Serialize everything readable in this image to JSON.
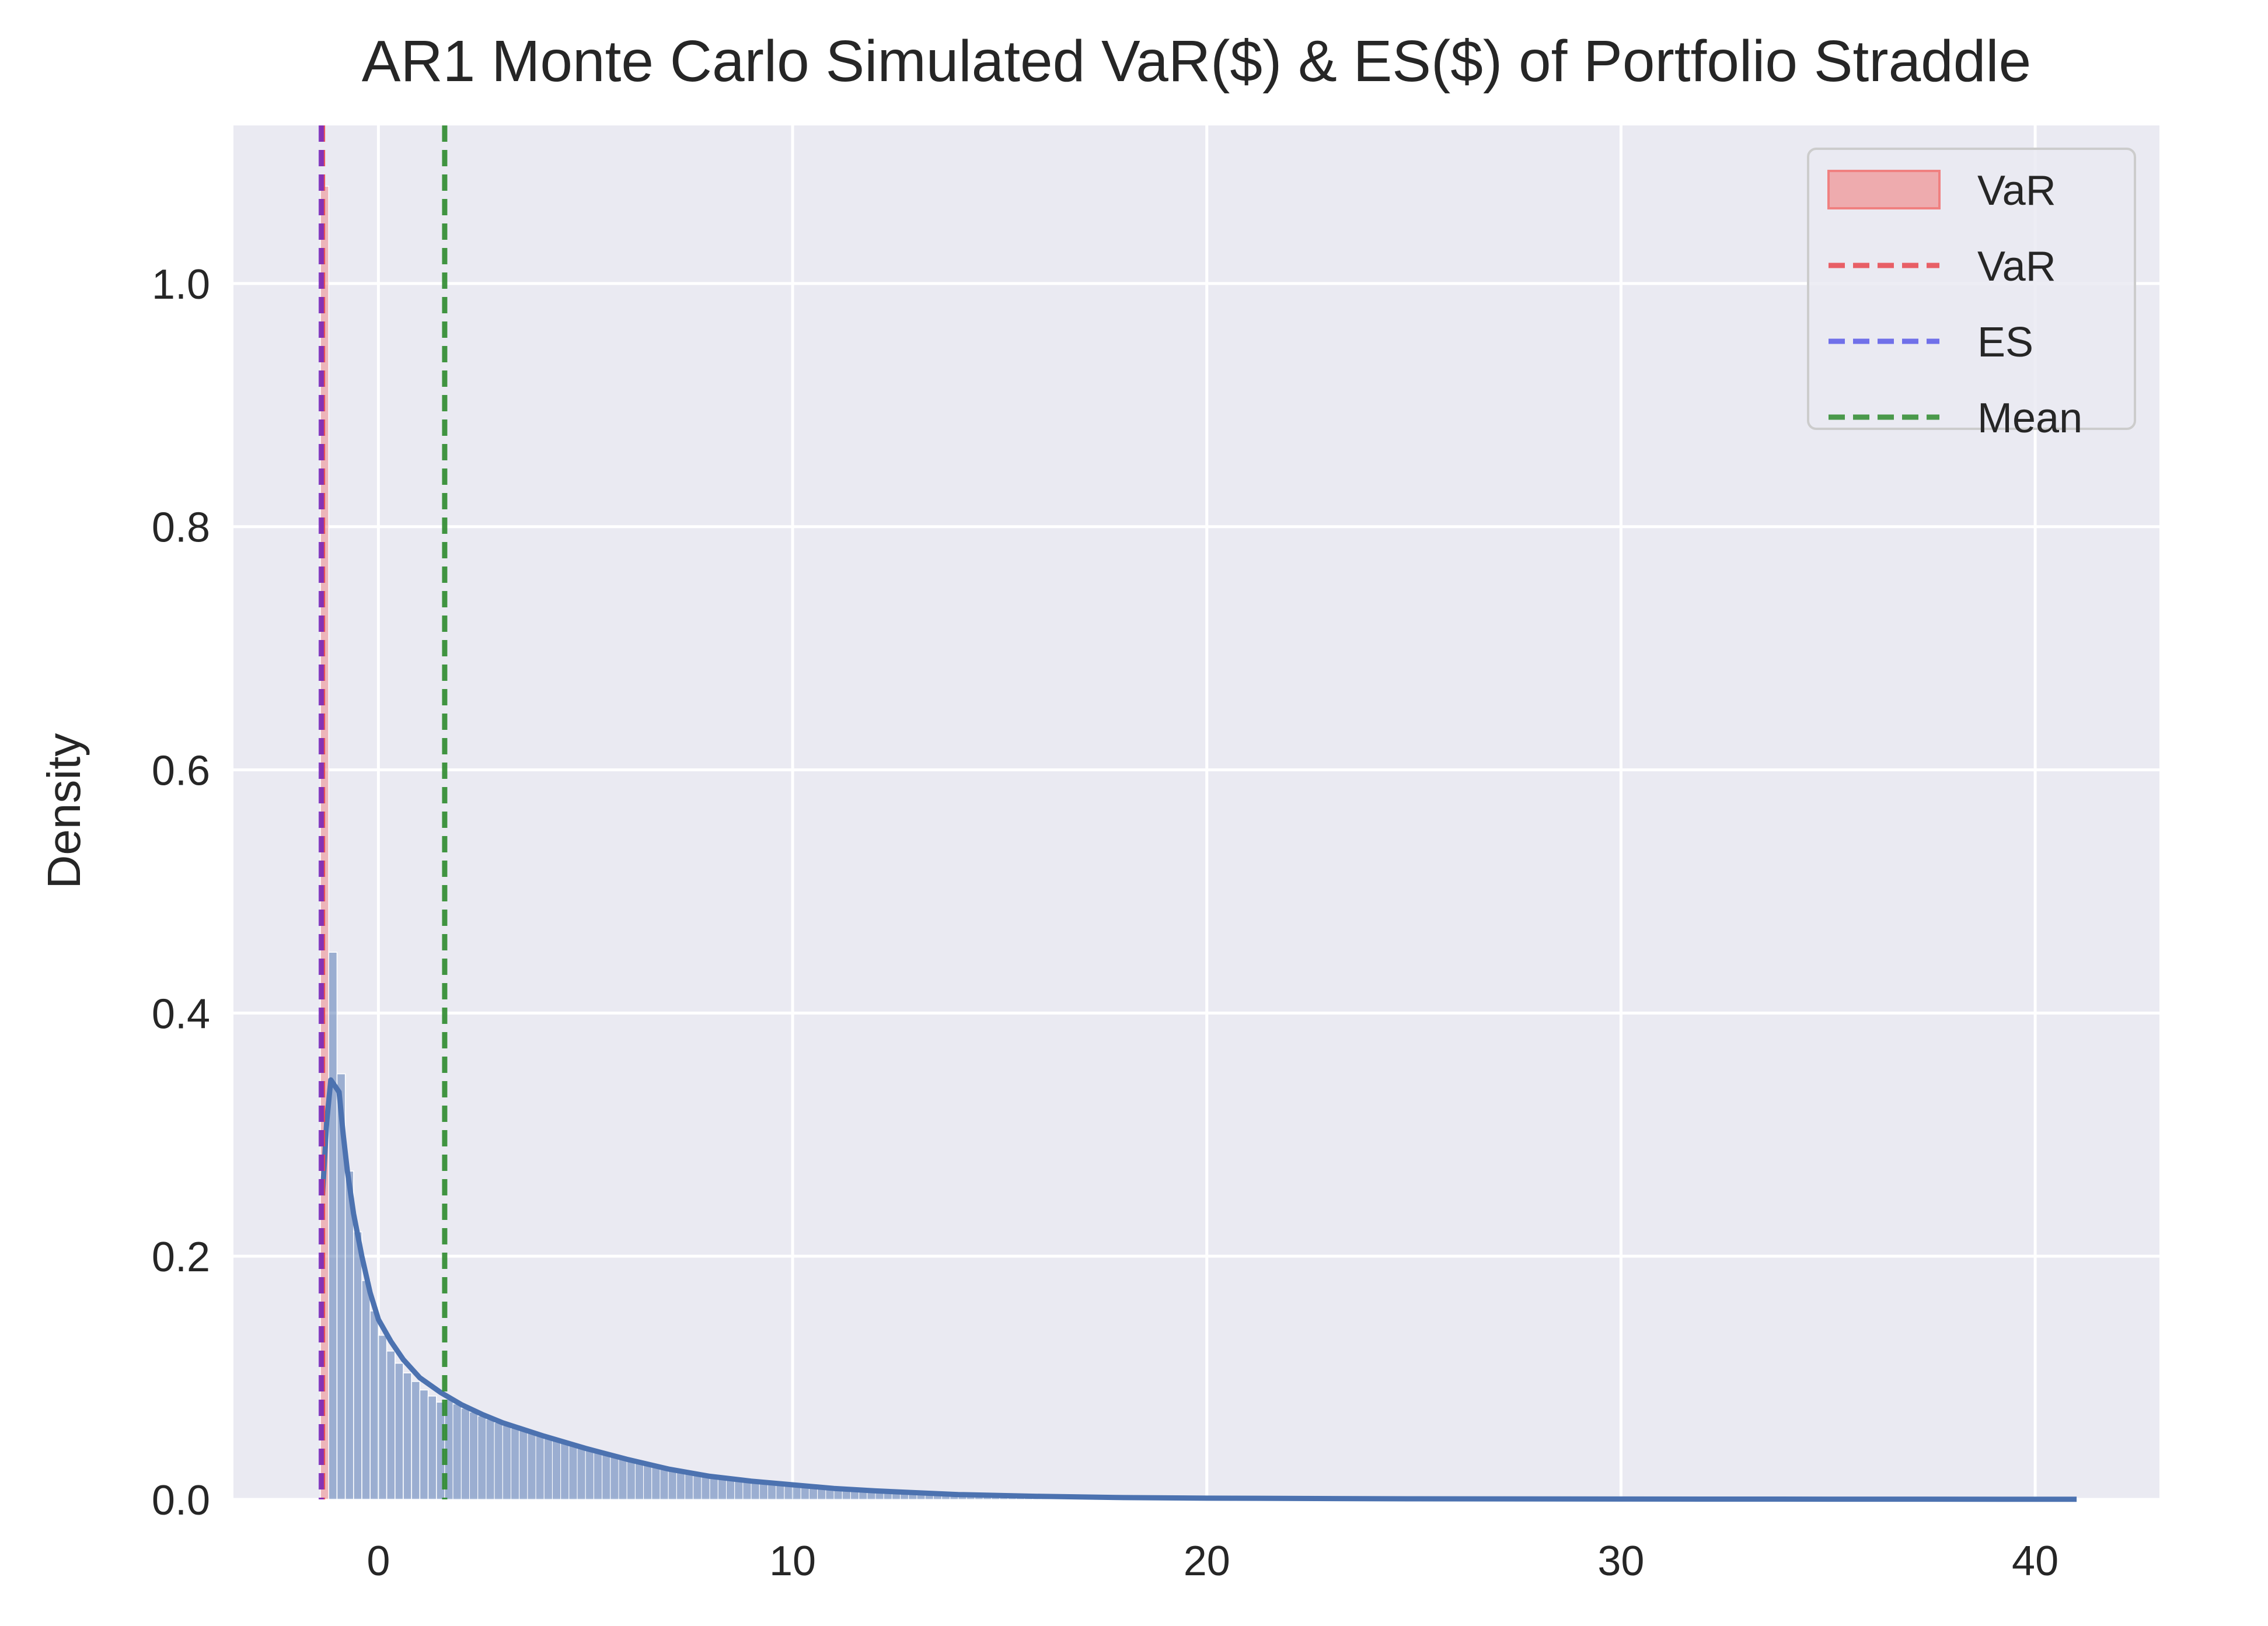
{
  "chart_data": {
    "type": "histogram",
    "title": "AR1 Monte Carlo Simulated VaR($) & ES($) of Portfolio Straddle",
    "xlabel": "",
    "ylabel": "Density",
    "xlim": [
      -3.5,
      43
    ],
    "ylim": [
      0,
      1.13
    ],
    "x_ticks": [
      0,
      10,
      20,
      30,
      40
    ],
    "x_tick_labels": [
      "0",
      "10",
      "20",
      "30",
      "40"
    ],
    "y_ticks": [
      0.0,
      0.2,
      0.4,
      0.6,
      0.8,
      1.0
    ],
    "y_tick_labels": [
      "0.0",
      "0.2",
      "0.4",
      "0.6",
      "0.8",
      "1.0"
    ],
    "grid": true,
    "background": "#EAEAF2",
    "hist_color": "#4C72B0",
    "var_fill_color": "#F08080",
    "kde_color": "#4C72B0",
    "histogram": {
      "bin_width": 0.2,
      "bins": [
        [
          -1.4,
          1.08
        ],
        [
          -1.2,
          0.45
        ],
        [
          -1.0,
          0.35
        ],
        [
          -0.8,
          0.27
        ],
        [
          -0.6,
          0.22
        ],
        [
          -0.4,
          0.18
        ],
        [
          -0.2,
          0.155
        ],
        [
          0.0,
          0.135
        ],
        [
          0.2,
          0.122
        ],
        [
          0.4,
          0.112
        ],
        [
          0.6,
          0.104
        ],
        [
          0.8,
          0.097
        ],
        [
          1.0,
          0.09
        ],
        [
          1.2,
          0.085
        ],
        [
          1.4,
          0.08
        ]
      ],
      "tail_note_x": [
        1.6,
        41.0
      ]
    },
    "kde_points": [
      [
        -1.35,
        0.25
      ],
      [
        -1.25,
        0.31
      ],
      [
        -1.15,
        0.345
      ],
      [
        -0.95,
        0.335
      ],
      [
        -0.85,
        0.3
      ],
      [
        -0.75,
        0.27
      ],
      [
        -0.6,
        0.235
      ],
      [
        -0.4,
        0.2
      ],
      [
        -0.2,
        0.17
      ],
      [
        0.0,
        0.148
      ],
      [
        0.3,
        0.13
      ],
      [
        0.6,
        0.115
      ],
      [
        1.0,
        0.1
      ],
      [
        1.5,
        0.088
      ],
      [
        2.0,
        0.078
      ],
      [
        2.5,
        0.07
      ],
      [
        3.0,
        0.063
      ],
      [
        4.0,
        0.052
      ],
      [
        5.0,
        0.042
      ],
      [
        6.0,
        0.033
      ],
      [
        7.0,
        0.025
      ],
      [
        8.0,
        0.019
      ],
      [
        9.0,
        0.015
      ],
      [
        10.0,
        0.012
      ],
      [
        11.0,
        0.009
      ],
      [
        12.0,
        0.007
      ],
      [
        14.0,
        0.004
      ],
      [
        16.0,
        0.0025
      ],
      [
        18.0,
        0.0015
      ],
      [
        20.0,
        0.001
      ],
      [
        25.0,
        0.0005
      ],
      [
        30.0,
        0.0003
      ],
      [
        35.0,
        0.0002
      ],
      [
        41.0,
        0.0001
      ]
    ],
    "reference_lines": [
      {
        "name": "VaR",
        "x": -1.35,
        "color": "#E8474D",
        "style": "dashed"
      },
      {
        "name": "ES",
        "x": -1.38,
        "color": "#7B2FBE",
        "style": "dashed"
      },
      {
        "name": "Mean",
        "x": 1.6,
        "color": "#2E8B2E",
        "style": "dashed"
      }
    ],
    "legend": {
      "placement": "top-right",
      "entries": [
        {
          "label": "VaR",
          "kind": "patch",
          "color": "#F08080"
        },
        {
          "label": "VaR",
          "kind": "line",
          "color": "#E8474D"
        },
        {
          "label": "ES",
          "kind": "line",
          "color": "#5B5BE8"
        },
        {
          "label": "Mean",
          "kind": "line",
          "color": "#2E8B2E"
        }
      ]
    }
  }
}
